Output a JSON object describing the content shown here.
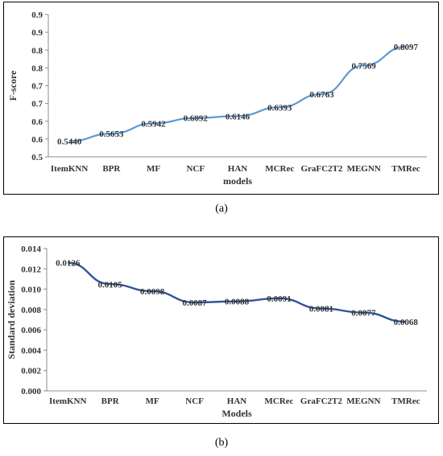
{
  "chart_data": [
    {
      "type": "line",
      "panel_label": "(a)",
      "xlabel": "models",
      "ylabel": "F-score",
      "categories": [
        "ItemKNN",
        "BPR",
        "MF",
        "NCF",
        "HAN",
        "MCRec",
        "GraFC2T2",
        "MEGNN",
        "TMRec"
      ],
      "values": [
        0.544,
        0.5653,
        0.5942,
        0.6092,
        0.6146,
        0.6393,
        0.6763,
        0.7569,
        0.8097
      ],
      "value_labels": [
        "0.5440",
        "0.5653",
        "0.5942",
        "0.6092",
        "0.6146",
        "0.6393",
        "0.6763",
        "0.7569",
        "0.8097"
      ],
      "y_ticks": [
        0.5,
        0.55,
        0.6,
        0.65,
        0.7,
        0.75,
        0.8,
        0.85,
        0.9
      ],
      "y_tick_labels": [
        "0.5",
        "0.6",
        "0.6",
        "0.7",
        "0.7",
        "0.8",
        "0.8",
        "0.9",
        "0.9"
      ],
      "ylim": [
        0.5,
        0.9
      ],
      "grid": false,
      "line_color": "#5B9BD5"
    },
    {
      "type": "line",
      "panel_label": "(b)",
      "xlabel": "Models",
      "ylabel": "Standard deviation",
      "categories": [
        "ItemKNN",
        "BPR",
        "MF",
        "NCF",
        "HAN",
        "MCRec",
        "GraFC2T2",
        "MEGNN",
        "TMRec"
      ],
      "values": [
        0.0126,
        0.0105,
        0.0098,
        0.0087,
        0.0088,
        0.0091,
        0.0081,
        0.0077,
        0.0068
      ],
      "value_labels": [
        "0.0126",
        "0.0105",
        "0.0098",
        "0.0087",
        "0.0088",
        "0.0091",
        "0.0081",
        "0.0077",
        "0.0068"
      ],
      "y_ticks": [
        0,
        0.002,
        0.004,
        0.006,
        0.008,
        0.01,
        0.012,
        0.014
      ],
      "y_tick_labels": [
        "0.000",
        "0.002",
        "0.004",
        "0.006",
        "0.008",
        "0.010",
        "0.012",
        "0.014"
      ],
      "ylim": [
        0,
        0.014
      ],
      "grid": false,
      "line_color": "#2E5597"
    }
  ]
}
